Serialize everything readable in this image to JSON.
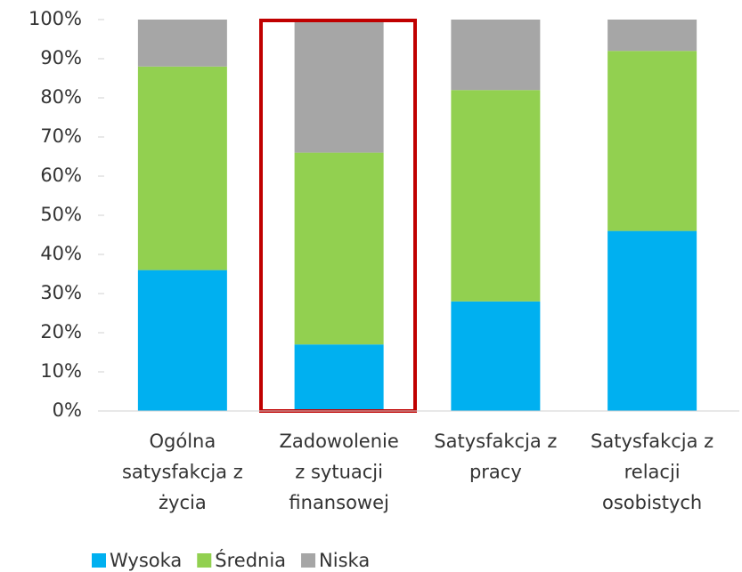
{
  "chart_data": {
    "type": "stacked_bar",
    "categories": [
      "Ogólna\nsatysfakcja z\nżycia",
      "Zadowolenie\nz sytuacji\nfinansowej",
      "Satysfakcja z\npracy",
      "Satysfakcja z\nrelacji\nosobistych"
    ],
    "series": [
      {
        "name": "Wysoka",
        "color": "#00b0f0",
        "values": [
          36,
          17,
          28,
          46
        ]
      },
      {
        "name": "Średnia",
        "color": "#92d050",
        "values": [
          52,
          49,
          54,
          46
        ]
      },
      {
        "name": "Niska",
        "color": "#a6a6a6",
        "values": [
          12,
          34,
          18,
          8
        ]
      }
    ],
    "ylim": [
      0,
      100
    ],
    "yticks": [
      {
        "value": 0,
        "label": "0%"
      },
      {
        "value": 10,
        "label": "10%"
      },
      {
        "value": 20,
        "label": "20%"
      },
      {
        "value": 30,
        "label": "30%"
      },
      {
        "value": 40,
        "label": "40%"
      },
      {
        "value": 50,
        "label": "50%"
      },
      {
        "value": 60,
        "label": "60%"
      },
      {
        "value": 70,
        "label": "70%"
      },
      {
        "value": 80,
        "label": "80%"
      },
      {
        "value": 90,
        "label": "90%"
      },
      {
        "value": 100,
        "label": "100%"
      }
    ],
    "legend": "bottom"
  }
}
